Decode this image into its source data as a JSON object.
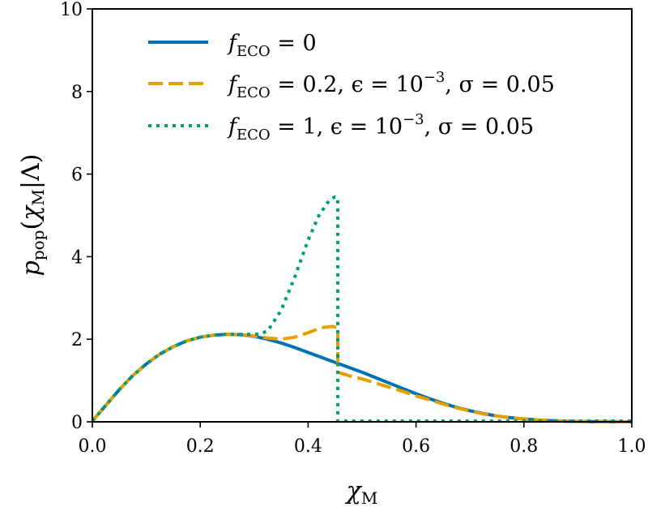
{
  "chart_data": {
    "type": "line",
    "xlabel": "χ_M",
    "ylabel": "p_pop(χ_M|Λ)",
    "xlim": [
      0.0,
      1.0
    ],
    "ylim": [
      0,
      10
    ],
    "x_ticks": [
      "0.0",
      "0.2",
      "0.4",
      "0.6",
      "0.8",
      "1.0"
    ],
    "y_ticks": [
      "0",
      "2",
      "4",
      "6",
      "8",
      "10"
    ],
    "grid": false,
    "legend_position": "upper-left",
    "series": [
      {
        "name": "f_ECO = 0",
        "color": "#0072B2",
        "style": "solid",
        "x": [
          0.0,
          0.025,
          0.05,
          0.075,
          0.1,
          0.125,
          0.15,
          0.175,
          0.2,
          0.225,
          0.25,
          0.275,
          0.3,
          0.325,
          0.35,
          0.375,
          0.4,
          0.425,
          0.45,
          0.475,
          0.5,
          0.525,
          0.55,
          0.575,
          0.6,
          0.625,
          0.65,
          0.675,
          0.7,
          0.725,
          0.75,
          0.775,
          0.8,
          0.825,
          0.85,
          0.875,
          0.9,
          0.925,
          0.95,
          0.975,
          1.0
        ],
        "y": [
          0.02,
          0.4,
          0.78,
          1.12,
          1.4,
          1.64,
          1.82,
          1.96,
          2.05,
          2.1,
          2.12,
          2.11,
          2.07,
          2.0,
          1.91,
          1.8,
          1.68,
          1.56,
          1.44,
          1.32,
          1.2,
          1.07,
          0.94,
          0.81,
          0.68,
          0.56,
          0.45,
          0.35,
          0.27,
          0.2,
          0.14,
          0.1,
          0.07,
          0.045,
          0.03,
          0.018,
          0.01,
          0.006,
          0.003,
          0.001,
          0.0
        ]
      },
      {
        "name": "f_ECO = 0.2, ε = 10^−3, σ = 0.05",
        "color": "#E69F00",
        "style": "dashed",
        "x": [
          0.0,
          0.025,
          0.05,
          0.075,
          0.1,
          0.125,
          0.15,
          0.175,
          0.2,
          0.225,
          0.25,
          0.275,
          0.3,
          0.325,
          0.35,
          0.375,
          0.4,
          0.425,
          0.445,
          0.455,
          0.455,
          0.475,
          0.5,
          0.525,
          0.55,
          0.575,
          0.6,
          0.625,
          0.65,
          0.675,
          0.7,
          0.725,
          0.75,
          0.775,
          0.8,
          0.825,
          0.85,
          0.875,
          0.9,
          0.925,
          0.95,
          0.975,
          1.0
        ],
        "y": [
          0.02,
          0.4,
          0.78,
          1.12,
          1.4,
          1.64,
          1.82,
          1.96,
          2.05,
          2.1,
          2.12,
          2.11,
          2.08,
          2.03,
          2.0,
          2.05,
          2.16,
          2.28,
          2.31,
          2.28,
          1.2,
          1.12,
          1.04,
          0.94,
          0.84,
          0.74,
          0.63,
          0.53,
          0.43,
          0.34,
          0.26,
          0.19,
          0.14,
          0.1,
          0.07,
          0.045,
          0.03,
          0.018,
          0.01,
          0.006,
          0.003,
          0.001,
          0.0
        ]
      },
      {
        "name": "f_ECO = 1, ε = 10^−3, σ = 0.05",
        "color": "#009E73",
        "style": "dotted",
        "x": [
          0.0,
          0.025,
          0.05,
          0.075,
          0.1,
          0.125,
          0.15,
          0.175,
          0.2,
          0.225,
          0.25,
          0.275,
          0.3,
          0.31,
          0.325,
          0.35,
          0.375,
          0.4,
          0.42,
          0.44,
          0.45,
          0.455,
          0.455,
          0.5,
          0.6,
          0.7,
          0.8,
          0.9,
          1.0
        ],
        "y": [
          0.02,
          0.4,
          0.78,
          1.12,
          1.4,
          1.64,
          1.82,
          1.96,
          2.05,
          2.1,
          2.12,
          2.12,
          2.12,
          2.13,
          2.2,
          2.7,
          3.5,
          4.4,
          5.0,
          5.38,
          5.45,
          5.42,
          0.02,
          0.02,
          0.02,
          0.02,
          0.02,
          0.02,
          0.02
        ]
      }
    ]
  },
  "legend": {
    "items": [
      {
        "pre": "f",
        "sub": "ECO",
        "post": " = 0"
      },
      {
        "pre": "f",
        "sub": "ECO",
        "post": " = 0.2, ϵ = 10",
        "sup": "−3",
        "tail": ", σ = 0.05"
      },
      {
        "pre": "f",
        "sub": "ECO",
        "post": " = 1, ϵ = 10",
        "sup": "−3",
        "tail": ", σ = 0.05"
      }
    ]
  }
}
